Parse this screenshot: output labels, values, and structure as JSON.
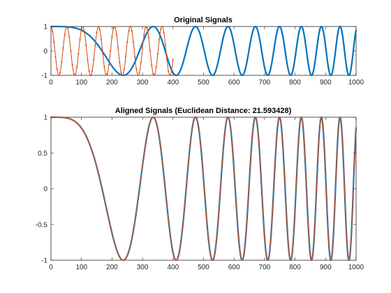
{
  "chart_data": [
    {
      "type": "line",
      "title": "Original Signals",
      "xlim": [
        0,
        1000
      ],
      "ylim": [
        -1,
        1
      ],
      "xticks": [
        0,
        100,
        200,
        300,
        400,
        500,
        600,
        700,
        800,
        900,
        1000
      ],
      "yticks": [
        -1,
        0,
        1
      ],
      "grid": false,
      "series": [
        {
          "color": "#0072BD",
          "style": "solid-thick",
          "x_range": [
            0,
            1000
          ],
          "formula": "y = cos(k*x^2)",
          "k": 5.6e-05,
          "sample_points": {
            "x": [
              0,
              240,
              335,
              410,
              1000
            ],
            "y": [
              1,
              -1,
              1,
              -1,
              1
            ]
          }
        },
        {
          "color": "#D95319",
          "style": "line-with-dot-markers",
          "x_range": [
            0,
            400
          ],
          "formula": "y = cos(2*pi*x/52)",
          "period": 52,
          "sample_points": {
            "x": [
              0,
              26,
              52,
              390
            ],
            "y": [
              1,
              -1,
              1,
              -1
            ]
          }
        }
      ]
    },
    {
      "type": "line",
      "title": "Aligned Signals (Euclidean Distance: 21.593428)",
      "xlim": [
        0,
        1000
      ],
      "ylim": [
        -1,
        1
      ],
      "xticks": [
        0,
        100,
        200,
        300,
        400,
        500,
        600,
        700,
        800,
        900,
        1000
      ],
      "yticks": [
        -1,
        -0.5,
        0,
        0.5,
        1
      ],
      "ytick_labels": [
        "-1",
        "-0.5",
        "0",
        "0.5",
        "1"
      ],
      "grid": false,
      "series": [
        {
          "color": "#0072BD",
          "style": "solid-thick",
          "x_range": [
            0,
            1000
          ],
          "formula": "y = cos(k*x^2)",
          "k": 5.6e-05
        },
        {
          "color": "#D95319",
          "style": "line-with-dot-markers",
          "x_range": [
            0,
            1000
          ],
          "formula": "y = cos(k*x^2)",
          "k": 5.6e-05
        }
      ]
    }
  ]
}
